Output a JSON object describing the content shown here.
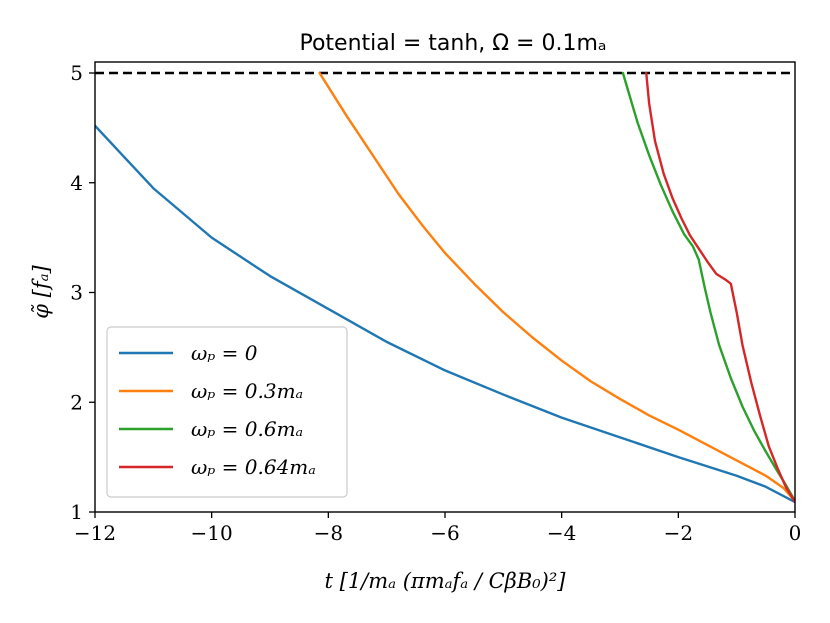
{
  "chart_data": {
    "type": "line",
    "title": "Potential = tanh, Ω = 0.1mₐ",
    "xlabel": "t [1/mₐ (πmₐfₐ / CβB₀)²]",
    "ylabel": "φ̃ [fₐ]",
    "xlim": [
      -12,
      0
    ],
    "ylim": [
      1,
      5.1
    ],
    "xticks": [
      -12,
      -10,
      -8,
      -6,
      -4,
      -2,
      0
    ],
    "xtick_labels": [
      "−12",
      "−10",
      "−8",
      "−6",
      "−4",
      "−2",
      "0"
    ],
    "yticks": [
      1,
      2,
      3,
      4,
      5
    ],
    "ytick_labels": [
      "1",
      "2",
      "3",
      "4",
      "5"
    ],
    "hline": {
      "y": 5,
      "style": "dashed",
      "color": "#000000"
    },
    "legend_position": "lower-left",
    "series": [
      {
        "name": "ωₚ = 0",
        "color": "#1f77b4",
        "x": [
          -12,
          -11,
          -10,
          -9,
          -8,
          -7,
          -6,
          -5,
          -4,
          -3,
          -2,
          -1,
          -0.5,
          0
        ],
        "y": [
          4.52,
          3.95,
          3.5,
          3.15,
          2.85,
          2.55,
          2.29,
          2.07,
          1.86,
          1.68,
          1.5,
          1.33,
          1.23,
          1.09
        ]
      },
      {
        "name": "ωₚ = 0.3mₐ",
        "color": "#ff7f0e",
        "x": [
          -8.15,
          -7.7,
          -7.2,
          -6.8,
          -6.4,
          -6.0,
          -5.5,
          -5.0,
          -4.5,
          -4.0,
          -3.5,
          -3.0,
          -2.5,
          -2.0,
          -1.5,
          -1.0,
          -0.5,
          -0.2,
          0
        ],
        "y": [
          5.0,
          4.62,
          4.22,
          3.9,
          3.62,
          3.36,
          3.08,
          2.82,
          2.59,
          2.38,
          2.19,
          2.03,
          1.88,
          1.75,
          1.61,
          1.47,
          1.33,
          1.22,
          1.1
        ]
      },
      {
        "name": "ωₚ = 0.6mₐ",
        "color": "#2ca02c",
        "x": [
          -2.95,
          -2.85,
          -2.7,
          -2.5,
          -2.3,
          -2.1,
          -1.9,
          -1.75,
          -1.65,
          -1.55,
          -1.45,
          -1.3,
          -1.1,
          -0.9,
          -0.7,
          -0.5,
          -0.3,
          -0.15,
          0
        ],
        "y": [
          5.0,
          4.82,
          4.55,
          4.25,
          3.98,
          3.74,
          3.53,
          3.42,
          3.3,
          3.05,
          2.82,
          2.52,
          2.22,
          1.96,
          1.74,
          1.55,
          1.37,
          1.24,
          1.1
        ]
      },
      {
        "name": "ωₚ = 0.64mₐ",
        "color": "#d62728",
        "x": [
          -2.55,
          -2.5,
          -2.4,
          -2.25,
          -2.1,
          -1.95,
          -1.8,
          -1.65,
          -1.5,
          -1.35,
          -1.2,
          -1.1,
          -1.0,
          -0.9,
          -0.75,
          -0.6,
          -0.45,
          -0.3,
          -0.15,
          0
        ],
        "y": [
          5.0,
          4.72,
          4.38,
          4.08,
          3.86,
          3.68,
          3.52,
          3.4,
          3.28,
          3.17,
          3.12,
          3.08,
          2.82,
          2.52,
          2.18,
          1.88,
          1.6,
          1.4,
          1.22,
          1.09
        ]
      }
    ]
  }
}
